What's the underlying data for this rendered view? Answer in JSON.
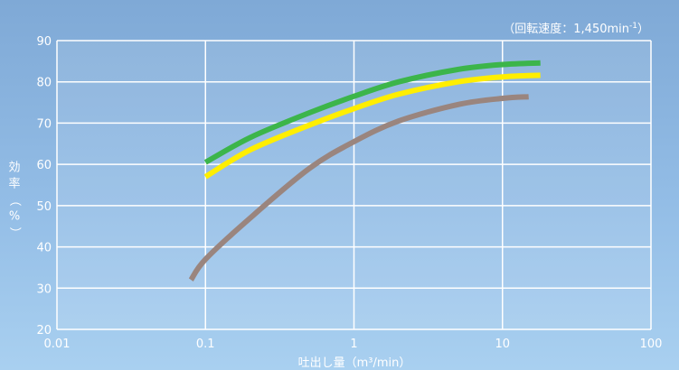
{
  "chart_data": {
    "type": "line",
    "title": "",
    "annotation": "（回転速度：1,450min",
    "annotation_sup": "-1",
    "annotation_close": "）",
    "xlabel": "吐出し量（m³/min）",
    "ylabel": "効率（%）",
    "x_scale": "log",
    "xlim": [
      0.01,
      100
    ],
    "ylim": [
      20,
      90
    ],
    "x_ticks": [
      "0.01",
      "0.1",
      "1",
      "10",
      "100"
    ],
    "y_ticks": [
      "20",
      "30",
      "40",
      "50",
      "60",
      "70",
      "80",
      "90"
    ],
    "grid": true,
    "legend": "none",
    "series": [
      {
        "color": "#3cb54a",
        "x": [
          0.1,
          0.2,
          0.5,
          1,
          2,
          5,
          10,
          18
        ],
        "y": [
          60.5,
          66.5,
          72.5,
          76.5,
          80,
          83,
          84.2,
          84.6
        ]
      },
      {
        "color": "#ffee00",
        "x": [
          0.1,
          0.2,
          0.5,
          1,
          2,
          5,
          10,
          18
        ],
        "y": [
          57,
          63.5,
          69.5,
          73.5,
          77,
          80,
          81.2,
          81.6
        ]
      },
      {
        "color": "#9a857e",
        "x": [
          0.08,
          0.1,
          0.2,
          0.5,
          1,
          2,
          5,
          10,
          15
        ],
        "y": [
          32,
          37,
          47,
          59,
          65.5,
          70.5,
          74.5,
          76,
          76.4
        ]
      }
    ]
  }
}
